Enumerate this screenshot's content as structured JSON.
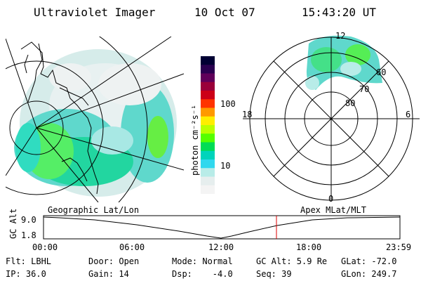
{
  "header": {
    "instrument": "Ultraviolet Imager",
    "date": "10 Oct 07",
    "time": "15:43:20 UT"
  },
  "colorbar": {
    "unit_label": "photon cm⁻²s⁻¹",
    "ticks": [
      "100",
      "10"
    ],
    "colors": [
      "#000033",
      "#2a0050",
      "#60005a",
      "#9a003a",
      "#cc0018",
      "#ff3300",
      "#ff9900",
      "#ffee00",
      "#bbff00",
      "#55ff00",
      "#00dd55",
      "#00d4bb",
      "#30d8ee",
      "#b8ece8",
      "#e6eeee",
      "#f4f4f4"
    ]
  },
  "geo_map": {
    "caption": "Geographic Lat/Lon"
  },
  "polar_plot": {
    "caption": "Apex MLat/MLT",
    "hour_labels": {
      "top": "12",
      "left": "18",
      "right": "6",
      "bottom": "0"
    },
    "lat_labels": [
      "60",
      "70",
      "80"
    ]
  },
  "altitude_track": {
    "ylabel": "GC Alt",
    "ytick_top": "9.0",
    "ytick_bottom": "1.8",
    "xticks": [
      "00:00",
      "06:00",
      "12:00",
      "18:00",
      "23:59"
    ],
    "marker_color": "#dd0000"
  },
  "status": {
    "flt": "Flt: LBHL",
    "ip": "IP: 36.0",
    "door": "Door: Open",
    "gain": "Gain: 14",
    "mode": "Mode: Normal",
    "dsp": "Dsp:    -4.0",
    "gcalt": "GC Alt: 5.9 Re",
    "seq": "Seq: 39",
    "glat": "GLat: -72.0",
    "glon": "GLon: 249.7"
  }
}
